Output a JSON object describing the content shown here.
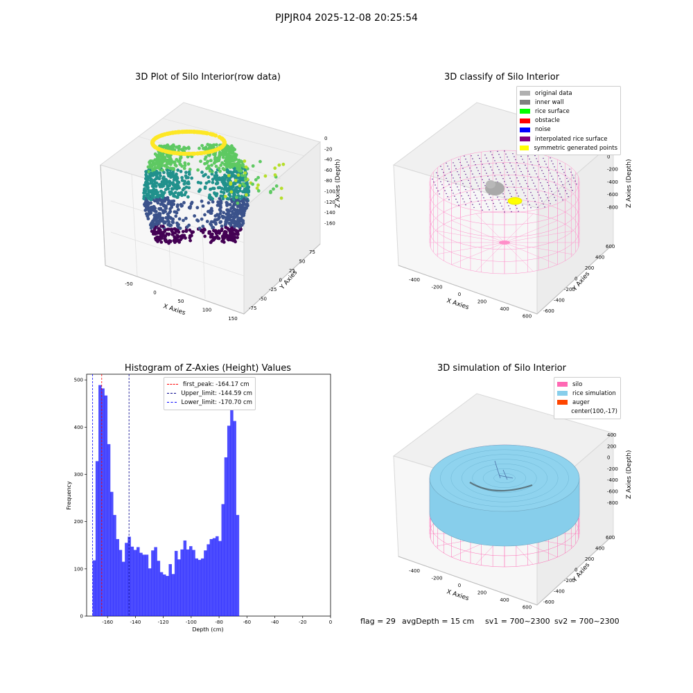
{
  "page": {
    "suptitle": "PJPJR04 2025-12-08 20:25:54"
  },
  "panels": {
    "raw": {
      "title": "3D Plot of Silo Interior(row data)",
      "xlabel": "X Axies",
      "ylabel": "Y Axies",
      "zlabel": "Z Axies (Depth)",
      "xticks": [
        "-50",
        "0",
        "50",
        "100",
        "150"
      ],
      "yticks": [
        "75",
        "50",
        "25",
        "0",
        "-25",
        "-50",
        "-75"
      ],
      "zticks": [
        "0",
        "-20",
        "-40",
        "-60",
        "-80",
        "-100",
        "-120",
        "-140",
        "-160"
      ]
    },
    "classify": {
      "title": "3D classify of Silo Interior",
      "xlabel": "X Axies",
      "ylabel": "Y Axies",
      "zlabel": "Z Axies (Depth)",
      "xticks": [
        "-400",
        "-200",
        "0",
        "200",
        "400",
        "600"
      ],
      "yticks": [
        "600",
        "400",
        "200",
        "0",
        "-200",
        "-400",
        "-600"
      ],
      "zticks": [
        "200",
        "0",
        "-200",
        "-400",
        "-600",
        "-800"
      ],
      "legend": [
        {
          "label": "original data",
          "color": "#b0b0b0"
        },
        {
          "label": "inner wall",
          "color": "#808080"
        },
        {
          "label": "rice surface",
          "color": "#00ff00"
        },
        {
          "label": "obstacle",
          "color": "#ff0000"
        },
        {
          "label": "noise",
          "color": "#0000ff"
        },
        {
          "label": "interpolated rice surface",
          "color": "#800080"
        },
        {
          "label": "symmetric generated points",
          "color": "#ffff00"
        }
      ]
    },
    "simulation": {
      "title": "3D simulation of Silo Interior",
      "xlabel": "X Axies",
      "ylabel": "Y Axies",
      "zlabel": "Z Axies (Depth)",
      "xticks": [
        "-400",
        "-200",
        "0",
        "200",
        "400",
        "600"
      ],
      "yticks": [
        "600",
        "400",
        "200",
        "0",
        "-200",
        "-400",
        "-600"
      ],
      "zticks": [
        "400",
        "200",
        "0",
        "-200",
        "-400",
        "-600",
        "-800"
      ],
      "legend": [
        {
          "label": "silo",
          "color": "#ff69b4"
        },
        {
          "label": "rice simulation",
          "color": "#87ceeb"
        },
        {
          "label": "auger",
          "color": "#ff4500"
        },
        {
          "label": "center(100,-17)",
          "color": ""
        }
      ]
    }
  },
  "footer": {
    "flag": "flag = 29",
    "avg_depth": "avgDepth = 15 cm",
    "sv1": "sv1 = 700~2300",
    "sv2": "sv2 = 700~2300"
  },
  "chart_data": {
    "type": "bar",
    "title": "Histogram of Z-Axies (Height) Values",
    "xlabel": "Depth (cm)",
    "ylabel": "Frequency",
    "xlim": [
      -175,
      0
    ],
    "ylim": [
      0,
      512
    ],
    "xticks": [
      -160,
      -140,
      -120,
      -100,
      -80,
      -60,
      -40,
      -20,
      0
    ],
    "yticks": [
      0,
      100,
      200,
      300,
      400,
      500
    ],
    "bin_start": -170.7,
    "bin_width": 2.1,
    "values": [
      118,
      328,
      489,
      482,
      467,
      364,
      263,
      214,
      163,
      140,
      115,
      155,
      168,
      147,
      140,
      146,
      134,
      130,
      130,
      101,
      139,
      146,
      117,
      93,
      88,
      85,
      110,
      89,
      138,
      120,
      141,
      160,
      141,
      148,
      140,
      122,
      119,
      122,
      139,
      152,
      163,
      165,
      169,
      159,
      237,
      336,
      403,
      473,
      413,
      214
    ],
    "bar_color": "#0000ff",
    "vlines": [
      {
        "label": "first_peak: -164.17 cm",
        "x": -164.17,
        "color": "#ff0000"
      },
      {
        "label": "Upper_limit: -144.59 cm",
        "x": -144.59,
        "color": "#00008b"
      },
      {
        "label": "Lower_limit: -170.70 cm",
        "x": -170.7,
        "color": "#0000ff"
      }
    ],
    "legend_position": "top-center"
  }
}
